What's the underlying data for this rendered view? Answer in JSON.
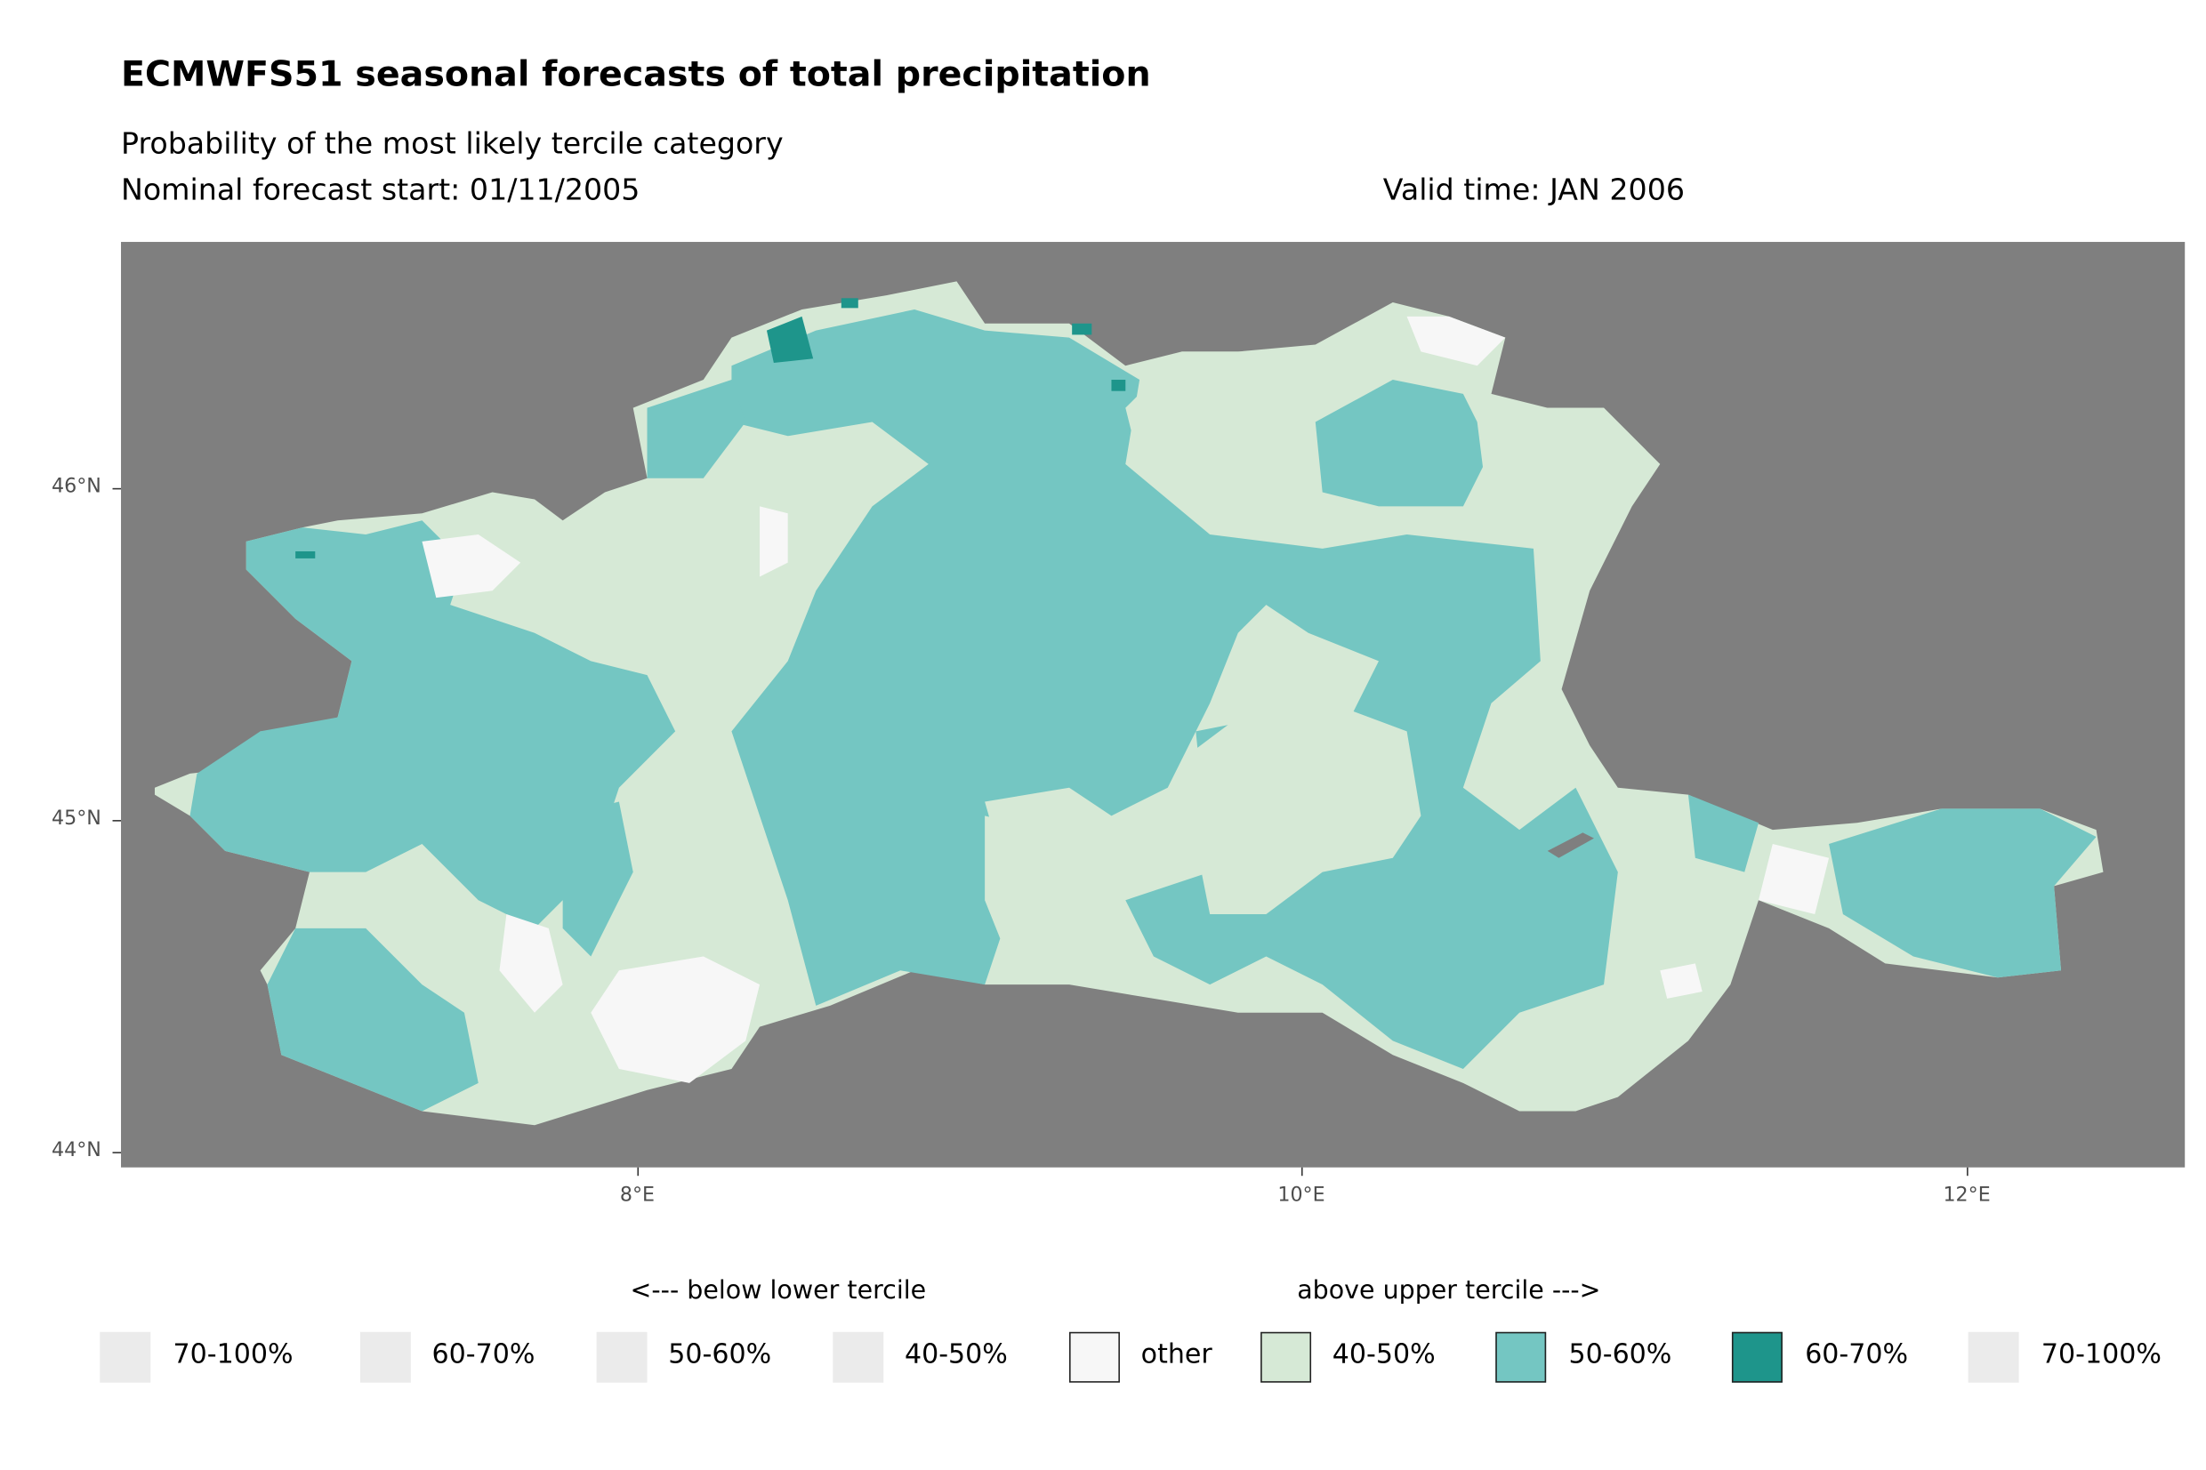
{
  "title": "ECMWFS51 seasonal forecasts of total precipitation",
  "subtitle": "Probability of the most likely tercile category",
  "forecast_start": "Nominal forecast start: 01/11/2005",
  "valid_time": "Valid time: JAN 2006",
  "colors": {
    "background_sea": "#7f7f7f",
    "other": "#f7f7f7",
    "above_40_50": "#d6e9d6",
    "above_50_60": "#74c6c2",
    "above_60_70": "#1e958b",
    "empty_key": "#ebebeb"
  },
  "chart_data": {
    "type": "map",
    "title": "ECMWFS51 seasonal forecasts of total precipitation",
    "lon_range": [
      6.45,
      12.66
    ],
    "lat_range": [
      43.95,
      46.74
    ],
    "x_ticks": [
      "8°E",
      "10°E",
      "12°E"
    ],
    "x_tick_values": [
      8,
      10,
      12
    ],
    "y_ticks": [
      "44°N",
      "45°N",
      "46°N"
    ],
    "y_tick_values": [
      44,
      45,
      46
    ],
    "legend": {
      "placement": "bottom",
      "below_title": "<--- below lower tercile",
      "above_title": "above upper tercile --->",
      "entries": [
        {
          "label": "70-100%",
          "group": "below",
          "shown": false
        },
        {
          "label": "60-70%",
          "group": "below",
          "shown": false
        },
        {
          "label": "50-60%",
          "group": "below",
          "shown": false
        },
        {
          "label": "40-50%",
          "group": "below",
          "shown": false
        },
        {
          "label": "other",
          "group": "other",
          "color": "#f7f7f7"
        },
        {
          "label": "40-50%",
          "group": "above",
          "color": "#d6e9d6"
        },
        {
          "label": "50-60%",
          "group": "above",
          "color": "#74c6c2"
        },
        {
          "label": "60-70%",
          "group": "above",
          "color": "#1e958b"
        },
        {
          "label": "70-100%",
          "group": "above",
          "shown": false
        }
      ]
    }
  }
}
